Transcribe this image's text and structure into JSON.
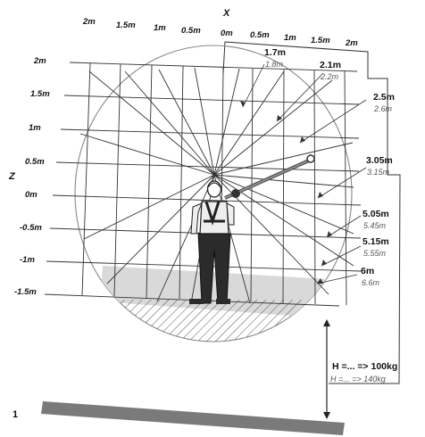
{
  "axis_x_label": "X",
  "axis_z_label": "Z",
  "x_ticks": [
    "2m",
    "1.5m",
    "1m",
    "0.5m",
    "0m",
    "0.5m",
    "1m",
    "1.5m",
    "2m"
  ],
  "z_ticks": [
    "2m",
    "1.5m",
    "1m",
    "0.5m",
    "0m",
    "-0.5m",
    "-1m",
    "-1.5m"
  ],
  "clearance_labels": [
    {
      "main": "1.7m",
      "sub": "1.8m"
    },
    {
      "main": "2.1m",
      "sub": "2.2m"
    },
    {
      "main": "2.5m",
      "sub": "2.6m"
    },
    {
      "main": "3.05m",
      "sub": "3.15m"
    },
    {
      "main": "5.05m",
      "sub": "5.45m"
    },
    {
      "main": "5.15m",
      "sub": "5.55m"
    },
    {
      "main": "6m",
      "sub": "6.6m"
    }
  ],
  "height_label": {
    "main": "H =... => 100kg",
    "sub": "H =... => 140kg"
  },
  "figure_number": "1",
  "colors": {
    "line": "#333333",
    "ground": "#7a7a7a",
    "shade": "#d9d9d9",
    "person": "#222222"
  }
}
